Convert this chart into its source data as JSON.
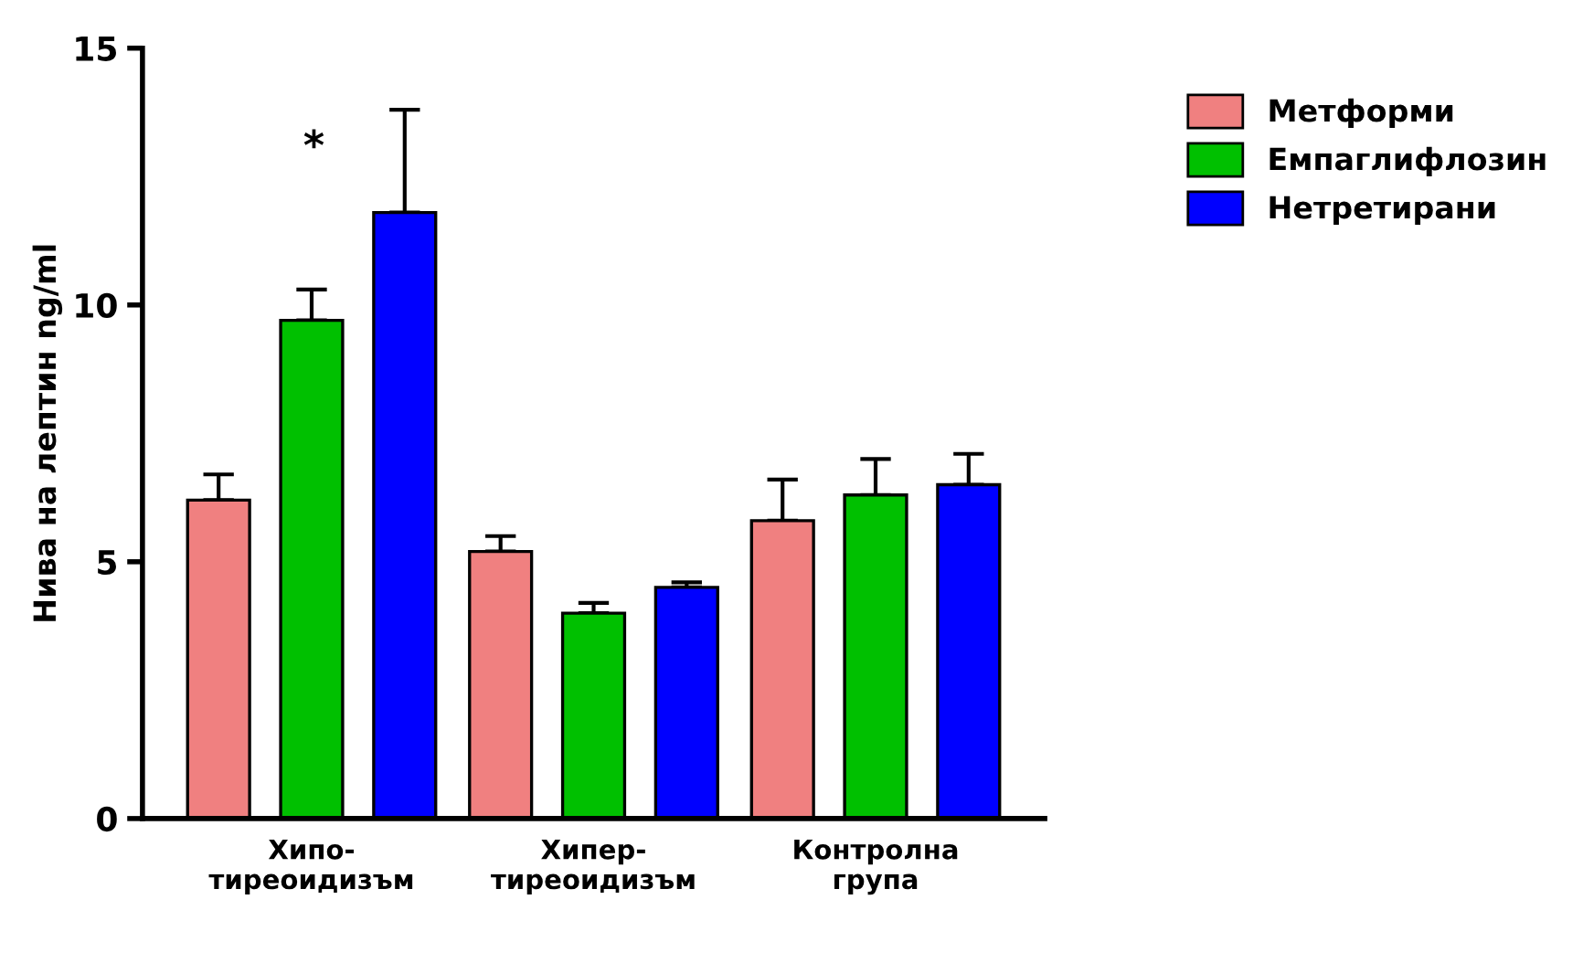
{
  "chart_data": {
    "type": "bar",
    "ylabel": "Нива на лептин ng/ml",
    "categories": [
      "Хипо-\nтиреоидизъм",
      "Хипер-\nтиреоидизъм",
      "Контролна\nгрупа"
    ],
    "series": [
      {
        "name": "Метформи",
        "color": "#f08080",
        "values": [
          6.2,
          5.2,
          5.8
        ],
        "errors": [
          [
            6.2,
            6.7
          ],
          [
            5.2,
            5.5
          ],
          [
            5.8,
            6.6
          ]
        ]
      },
      {
        "name": "Емпаглифлозин",
        "color": "#00c000",
        "values": [
          9.7,
          4.0,
          6.3
        ],
        "errors": [
          [
            9.7,
            10.3
          ],
          [
            4.0,
            4.2
          ],
          [
            6.3,
            7.0
          ]
        ]
      },
      {
        "name": "Нетретирани",
        "color": "#0000ff",
        "values": [
          11.8,
          4.5,
          6.5
        ],
        "errors": [
          [
            11.8,
            13.8
          ],
          [
            4.5,
            4.6
          ],
          [
            6.5,
            7.1
          ]
        ]
      }
    ],
    "ylim": [
      0,
      15
    ],
    "yticks": [
      0,
      5,
      10,
      15
    ],
    "grid": false,
    "legend": "top right",
    "annotations": [
      "*"
    ]
  }
}
